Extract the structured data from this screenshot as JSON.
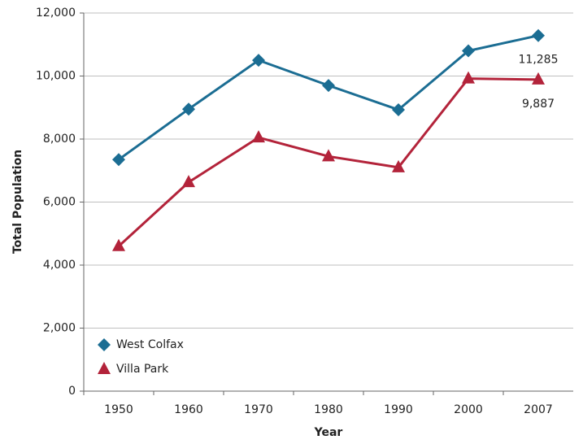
{
  "chart_data": {
    "type": "line",
    "x_label": "Year",
    "y_label": "Total Population",
    "categories": [
      "1950",
      "1960",
      "1970",
      "1980",
      "1990",
      "2000",
      "2007"
    ],
    "series": [
      {
        "name": "West Colfax",
        "color": "#1b6d93",
        "marker": "diamond",
        "values": [
          7350,
          8950,
          10500,
          9700,
          8930,
          10800,
          11285
        ],
        "value_labels": [
          null,
          null,
          null,
          null,
          null,
          null,
          "11,285"
        ]
      },
      {
        "name": "Villa Park",
        "color": "#b3233a",
        "marker": "triangle",
        "values": [
          4600,
          6630,
          8050,
          7450,
          7100,
          9920,
          9887
        ],
        "value_labels": [
          null,
          null,
          null,
          null,
          null,
          null,
          "9,887"
        ]
      }
    ],
    "ylim": [
      0,
      12000
    ],
    "yticks": [
      0,
      {
        "value": 2000,
        "label": "2,000"
      },
      {
        "value": 4000,
        "label": "4,000"
      },
      {
        "value": 6000,
        "label": "6,000"
      },
      {
        "value": 8000,
        "label": "8,000"
      },
      {
        "value": 10000,
        "label": "10,000"
      },
      {
        "value": 12000,
        "label": "12,000"
      }
    ],
    "grid": true,
    "legend": "lower left"
  }
}
